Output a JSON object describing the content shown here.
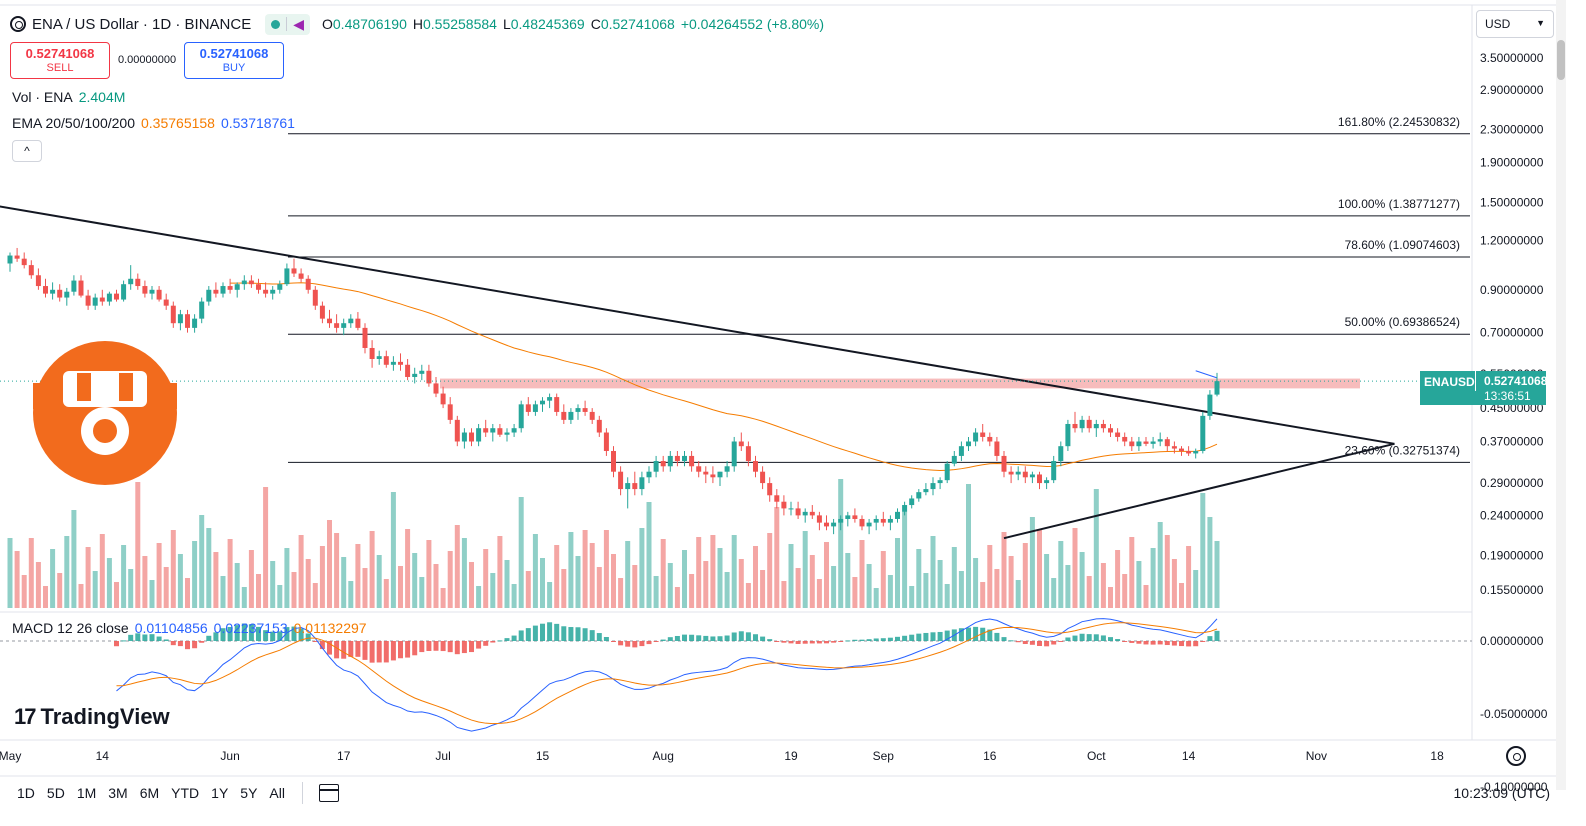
{
  "header": {
    "title": "ENA / US Dollar · 1D · BINANCE",
    "ohlc": {
      "o_label": "O",
      "o": "0.48706190",
      "h_label": "H",
      "h": "0.55258584",
      "l_label": "L",
      "l": "0.48245369",
      "c_label": "C",
      "c": "0.52741068",
      "change": "+0.04264552 (+8.80%)"
    }
  },
  "trade": {
    "sell_price": "0.52741068",
    "sell_label": "SELL",
    "spread": "0.00000000",
    "buy_price": "0.52741068",
    "buy_label": "BUY"
  },
  "legend": {
    "vol_label": "Vol · ENA",
    "vol_value": "2.404M",
    "ema_label": "EMA 20/50/100/200",
    "ema_value_1": "0.35765158",
    "ema_value_2": "0.53718761",
    "collapse": "^"
  },
  "macd": {
    "label": "MACD 12 26 close",
    "v1": "0.01104856",
    "v2": "0.02237153",
    "v3": "0.01132297"
  },
  "currency": {
    "selected": "USD"
  },
  "price_tag": {
    "symbol": "ENAUSD",
    "price": "0.52741068",
    "countdown": "13:36:51"
  },
  "branding": {
    "name": "TradingView",
    "mark": "17"
  },
  "range_buttons": [
    "1D",
    "5D",
    "1M",
    "3M",
    "6M",
    "YTD",
    "1Y",
    "5Y",
    "All"
  ],
  "clock": "10:23:09 (UTC)",
  "colors": {
    "up": "#26a69a",
    "down": "#ef5350",
    "up_vol": "#8fcfc7",
    "down_vol": "#f4a6a4",
    "ema_orange": "#f57c00",
    "macd_blue": "#2962ff",
    "resistance_band": "#f4a6a6",
    "logo_orange": "#f26b1d"
  },
  "chart_data": {
    "type": "candlestick",
    "symbol": "ENAUSD",
    "timeframe": "1D",
    "exchange": "BINANCE",
    "price_axis": {
      "scale": "log",
      "ticks": [
        "3.50000000",
        "2.90000000",
        "2.30000000",
        "1.90000000",
        "1.50000000",
        "1.20000000",
        "0.90000000",
        "0.70000000",
        "0.55000000",
        "0.45000000",
        "0.37000000",
        "0.29000000",
        "0.24000000",
        "0.19000000",
        "0.15500000"
      ],
      "tick_values": [
        3.5,
        2.9,
        2.3,
        1.9,
        1.5,
        1.2,
        0.9,
        0.7,
        0.55,
        0.45,
        0.37,
        0.29,
        0.24,
        0.19,
        0.155
      ]
    },
    "time_axis": {
      "labels": [
        "May",
        "14",
        "Jun",
        "17",
        "Jul",
        "15",
        "Aug",
        "19",
        "Sep",
        "16",
        "Oct",
        "14",
        "Nov",
        "18"
      ],
      "label_days": [
        0,
        13,
        31,
        47,
        61,
        75,
        92,
        110,
        123,
        138,
        153,
        166,
        184,
        201
      ]
    },
    "fib_levels": [
      {
        "label": "161.80% (2.24530832)",
        "value": 2.24530832
      },
      {
        "label": "100.00% (1.38771277)",
        "value": 1.38771277
      },
      {
        "label": "78.60% (1.09074603)",
        "value": 1.09074603
      },
      {
        "label": "50.00% (0.69386524)",
        "value": 0.69386524
      },
      {
        "label": "23.60% (0.32751374)",
        "value": 0.32751374
      }
    ],
    "resistance_zone": [
      0.505,
      0.535
    ],
    "trendlines": [
      {
        "name": "descending",
        "from": {
          "day": -12,
          "price": 1.58
        },
        "to": {
          "day": 195,
          "price": 0.365
        }
      },
      {
        "name": "ascending",
        "from": {
          "day": 140,
          "price": 0.21
        },
        "to": {
          "day": 195,
          "price": 0.365
        }
      }
    ],
    "candles": [
      [
        1.05,
        1.12,
        1.0,
        1.1
      ],
      [
        1.1,
        1.15,
        1.06,
        1.08
      ],
      [
        1.08,
        1.12,
        1.02,
        1.04
      ],
      [
        1.04,
        1.07,
        0.96,
        0.98
      ],
      [
        0.98,
        1.02,
        0.9,
        0.92
      ],
      [
        0.92,
        0.96,
        0.86,
        0.88
      ],
      [
        0.88,
        0.94,
        0.85,
        0.9
      ],
      [
        0.9,
        0.93,
        0.84,
        0.86
      ],
      [
        0.86,
        0.91,
        0.82,
        0.89
      ],
      [
        0.89,
        0.98,
        0.87,
        0.95
      ],
      [
        0.95,
        0.98,
        0.86,
        0.87
      ],
      [
        0.87,
        0.9,
        0.8,
        0.82
      ],
      [
        0.82,
        0.88,
        0.8,
        0.86
      ],
      [
        0.86,
        0.9,
        0.82,
        0.84
      ],
      [
        0.84,
        0.89,
        0.82,
        0.88
      ],
      [
        0.88,
        0.9,
        0.84,
        0.85
      ],
      [
        0.85,
        0.95,
        0.84,
        0.93
      ],
      [
        0.93,
        1.04,
        0.9,
        0.96
      ],
      [
        0.96,
        0.99,
        0.9,
        0.92
      ],
      [
        0.92,
        0.95,
        0.86,
        0.88
      ],
      [
        0.88,
        0.92,
        0.85,
        0.9
      ],
      [
        0.9,
        0.92,
        0.84,
        0.85
      ],
      [
        0.85,
        0.88,
        0.8,
        0.82
      ],
      [
        0.82,
        0.84,
        0.72,
        0.74
      ],
      [
        0.74,
        0.8,
        0.71,
        0.78
      ],
      [
        0.78,
        0.8,
        0.7,
        0.72
      ],
      [
        0.72,
        0.78,
        0.7,
        0.76
      ],
      [
        0.76,
        0.86,
        0.74,
        0.84
      ],
      [
        0.84,
        0.92,
        0.82,
        0.9
      ],
      [
        0.9,
        0.94,
        0.86,
        0.88
      ],
      [
        0.88,
        0.94,
        0.86,
        0.92
      ],
      [
        0.92,
        0.96,
        0.88,
        0.9
      ],
      [
        0.9,
        0.94,
        0.86,
        0.93
      ],
      [
        0.93,
        0.98,
        0.9,
        0.95
      ],
      [
        0.95,
        0.98,
        0.91,
        0.93
      ],
      [
        0.93,
        0.96,
        0.88,
        0.9
      ],
      [
        0.9,
        0.94,
        0.86,
        0.88
      ],
      [
        0.88,
        0.92,
        0.85,
        0.9
      ],
      [
        0.9,
        0.95,
        0.88,
        0.93
      ],
      [
        0.93,
        1.05,
        0.92,
        1.02
      ],
      [
        1.02,
        1.08,
        0.97,
        0.99
      ],
      [
        0.99,
        1.02,
        0.94,
        0.96
      ],
      [
        0.96,
        0.98,
        0.88,
        0.9
      ],
      [
        0.9,
        0.92,
        0.8,
        0.82
      ],
      [
        0.82,
        0.84,
        0.74,
        0.76
      ],
      [
        0.76,
        0.8,
        0.72,
        0.74
      ],
      [
        0.74,
        0.78,
        0.7,
        0.72
      ],
      [
        0.72,
        0.76,
        0.69,
        0.74
      ],
      [
        0.74,
        0.78,
        0.72,
        0.76
      ],
      [
        0.76,
        0.79,
        0.71,
        0.72
      ],
      [
        0.72,
        0.74,
        0.62,
        0.64
      ],
      [
        0.64,
        0.67,
        0.57,
        0.6
      ],
      [
        0.6,
        0.63,
        0.58,
        0.61
      ],
      [
        0.61,
        0.63,
        0.57,
        0.58
      ],
      [
        0.58,
        0.61,
        0.56,
        0.59
      ],
      [
        0.59,
        0.62,
        0.56,
        0.58
      ],
      [
        0.58,
        0.6,
        0.53,
        0.54
      ],
      [
        0.54,
        0.57,
        0.52,
        0.55
      ],
      [
        0.55,
        0.58,
        0.53,
        0.56
      ],
      [
        0.56,
        0.58,
        0.51,
        0.52
      ],
      [
        0.52,
        0.54,
        0.48,
        0.49
      ],
      [
        0.49,
        0.51,
        0.45,
        0.46
      ],
      [
        0.46,
        0.48,
        0.41,
        0.42
      ],
      [
        0.42,
        0.43,
        0.36,
        0.37
      ],
      [
        0.37,
        0.4,
        0.355,
        0.39
      ],
      [
        0.39,
        0.4,
        0.36,
        0.37
      ],
      [
        0.37,
        0.41,
        0.36,
        0.4
      ],
      [
        0.4,
        0.42,
        0.38,
        0.39
      ],
      [
        0.39,
        0.41,
        0.37,
        0.4
      ],
      [
        0.4,
        0.41,
        0.38,
        0.385
      ],
      [
        0.385,
        0.4,
        0.37,
        0.39
      ],
      [
        0.39,
        0.41,
        0.38,
        0.4
      ],
      [
        0.4,
        0.47,
        0.39,
        0.46
      ],
      [
        0.46,
        0.48,
        0.43,
        0.44
      ],
      [
        0.44,
        0.47,
        0.43,
        0.46
      ],
      [
        0.46,
        0.48,
        0.44,
        0.47
      ],
      [
        0.47,
        0.49,
        0.45,
        0.48
      ],
      [
        0.48,
        0.49,
        0.43,
        0.44
      ],
      [
        0.44,
        0.46,
        0.41,
        0.42
      ],
      [
        0.42,
        0.45,
        0.41,
        0.44
      ],
      [
        0.44,
        0.46,
        0.42,
        0.45
      ],
      [
        0.45,
        0.47,
        0.43,
        0.44
      ],
      [
        0.44,
        0.45,
        0.41,
        0.42
      ],
      [
        0.42,
        0.43,
        0.38,
        0.39
      ],
      [
        0.39,
        0.4,
        0.34,
        0.35
      ],
      [
        0.35,
        0.36,
        0.3,
        0.31
      ],
      [
        0.31,
        0.32,
        0.27,
        0.28
      ],
      [
        0.28,
        0.3,
        0.25,
        0.29
      ],
      [
        0.29,
        0.31,
        0.27,
        0.28
      ],
      [
        0.28,
        0.31,
        0.27,
        0.3
      ],
      [
        0.3,
        0.32,
        0.29,
        0.31
      ],
      [
        0.31,
        0.34,
        0.3,
        0.33
      ],
      [
        0.33,
        0.34,
        0.31,
        0.32
      ],
      [
        0.32,
        0.35,
        0.31,
        0.34
      ],
      [
        0.34,
        0.35,
        0.32,
        0.33
      ],
      [
        0.33,
        0.35,
        0.32,
        0.34
      ],
      [
        0.34,
        0.35,
        0.31,
        0.32
      ],
      [
        0.32,
        0.33,
        0.3,
        0.31
      ],
      [
        0.31,
        0.32,
        0.29,
        0.305
      ],
      [
        0.305,
        0.32,
        0.29,
        0.3
      ],
      [
        0.3,
        0.31,
        0.285,
        0.31
      ],
      [
        0.31,
        0.33,
        0.3,
        0.32
      ],
      [
        0.32,
        0.38,
        0.31,
        0.37
      ],
      [
        0.37,
        0.39,
        0.35,
        0.36
      ],
      [
        0.36,
        0.37,
        0.32,
        0.33
      ],
      [
        0.33,
        0.34,
        0.3,
        0.31
      ],
      [
        0.31,
        0.32,
        0.28,
        0.29
      ],
      [
        0.29,
        0.3,
        0.26,
        0.27
      ],
      [
        0.27,
        0.28,
        0.25,
        0.26
      ],
      [
        0.26,
        0.27,
        0.24,
        0.25
      ],
      [
        0.25,
        0.26,
        0.24,
        0.25
      ],
      [
        0.25,
        0.26,
        0.235,
        0.24
      ],
      [
        0.24,
        0.25,
        0.23,
        0.245
      ],
      [
        0.245,
        0.255,
        0.235,
        0.24
      ],
      [
        0.24,
        0.245,
        0.22,
        0.23
      ],
      [
        0.23,
        0.24,
        0.22,
        0.225
      ],
      [
        0.225,
        0.235,
        0.215,
        0.23
      ],
      [
        0.23,
        0.24,
        0.22,
        0.235
      ],
      [
        0.235,
        0.245,
        0.225,
        0.24
      ],
      [
        0.24,
        0.25,
        0.23,
        0.235
      ],
      [
        0.235,
        0.24,
        0.22,
        0.225
      ],
      [
        0.225,
        0.235,
        0.215,
        0.23
      ],
      [
        0.23,
        0.24,
        0.22,
        0.235
      ],
      [
        0.235,
        0.245,
        0.225,
        0.23
      ],
      [
        0.23,
        0.24,
        0.22,
        0.235
      ],
      [
        0.235,
        0.25,
        0.23,
        0.245
      ],
      [
        0.245,
        0.26,
        0.24,
        0.255
      ],
      [
        0.255,
        0.27,
        0.25,
        0.265
      ],
      [
        0.265,
        0.28,
        0.26,
        0.275
      ],
      [
        0.275,
        0.29,
        0.27,
        0.28
      ],
      [
        0.28,
        0.3,
        0.27,
        0.29
      ],
      [
        0.29,
        0.3,
        0.28,
        0.295
      ],
      [
        0.295,
        0.33,
        0.29,
        0.325
      ],
      [
        0.325,
        0.35,
        0.32,
        0.34
      ],
      [
        0.34,
        0.37,
        0.33,
        0.36
      ],
      [
        0.36,
        0.38,
        0.35,
        0.37
      ],
      [
        0.37,
        0.4,
        0.36,
        0.39
      ],
      [
        0.39,
        0.41,
        0.37,
        0.38
      ],
      [
        0.38,
        0.39,
        0.36,
        0.37
      ],
      [
        0.37,
        0.38,
        0.33,
        0.34
      ],
      [
        0.34,
        0.35,
        0.3,
        0.31
      ],
      [
        0.31,
        0.32,
        0.29,
        0.305
      ],
      [
        0.305,
        0.32,
        0.295,
        0.31
      ],
      [
        0.31,
        0.32,
        0.29,
        0.3
      ],
      [
        0.3,
        0.31,
        0.29,
        0.305
      ],
      [
        0.305,
        0.31,
        0.28,
        0.29
      ],
      [
        0.29,
        0.3,
        0.28,
        0.295
      ],
      [
        0.295,
        0.34,
        0.29,
        0.33
      ],
      [
        0.33,
        0.37,
        0.32,
        0.36
      ],
      [
        0.36,
        0.42,
        0.35,
        0.41
      ],
      [
        0.41,
        0.44,
        0.39,
        0.4
      ],
      [
        0.4,
        0.43,
        0.39,
        0.42
      ],
      [
        0.42,
        0.43,
        0.39,
        0.4
      ],
      [
        0.4,
        0.42,
        0.38,
        0.41
      ],
      [
        0.41,
        0.42,
        0.39,
        0.4
      ],
      [
        0.4,
        0.41,
        0.38,
        0.39
      ],
      [
        0.39,
        0.4,
        0.37,
        0.38
      ],
      [
        0.38,
        0.39,
        0.36,
        0.37
      ],
      [
        0.37,
        0.38,
        0.35,
        0.36
      ],
      [
        0.36,
        0.38,
        0.35,
        0.37
      ],
      [
        0.37,
        0.38,
        0.36,
        0.365
      ],
      [
        0.365,
        0.38,
        0.355,
        0.37
      ],
      [
        0.37,
        0.39,
        0.36,
        0.375
      ],
      [
        0.375,
        0.38,
        0.35,
        0.36
      ],
      [
        0.36,
        0.37,
        0.345,
        0.355
      ],
      [
        0.355,
        0.36,
        0.34,
        0.35
      ],
      [
        0.35,
        0.36,
        0.34,
        0.345
      ],
      [
        0.345,
        0.355,
        0.335,
        0.35
      ],
      [
        0.35,
        0.44,
        0.345,
        0.43
      ],
      [
        0.43,
        0.5,
        0.42,
        0.487
      ],
      [
        0.487,
        0.553,
        0.482,
        0.527
      ]
    ],
    "series": [
      {
        "name": "EMA 20/50/100/200",
        "value_latest": [
          0.35765158,
          0.53718761
        ]
      },
      {
        "name": "MACD 12 26 close",
        "values_latest": [
          0.01104856,
          0.02237153,
          0.01132297
        ]
      }
    ],
    "macd_axis": {
      "ticks": [
        "0.00000000",
        "-0.05000000",
        "-0.10000000"
      ],
      "tick_values": [
        0,
        -0.05,
        -0.1
      ]
    }
  }
}
